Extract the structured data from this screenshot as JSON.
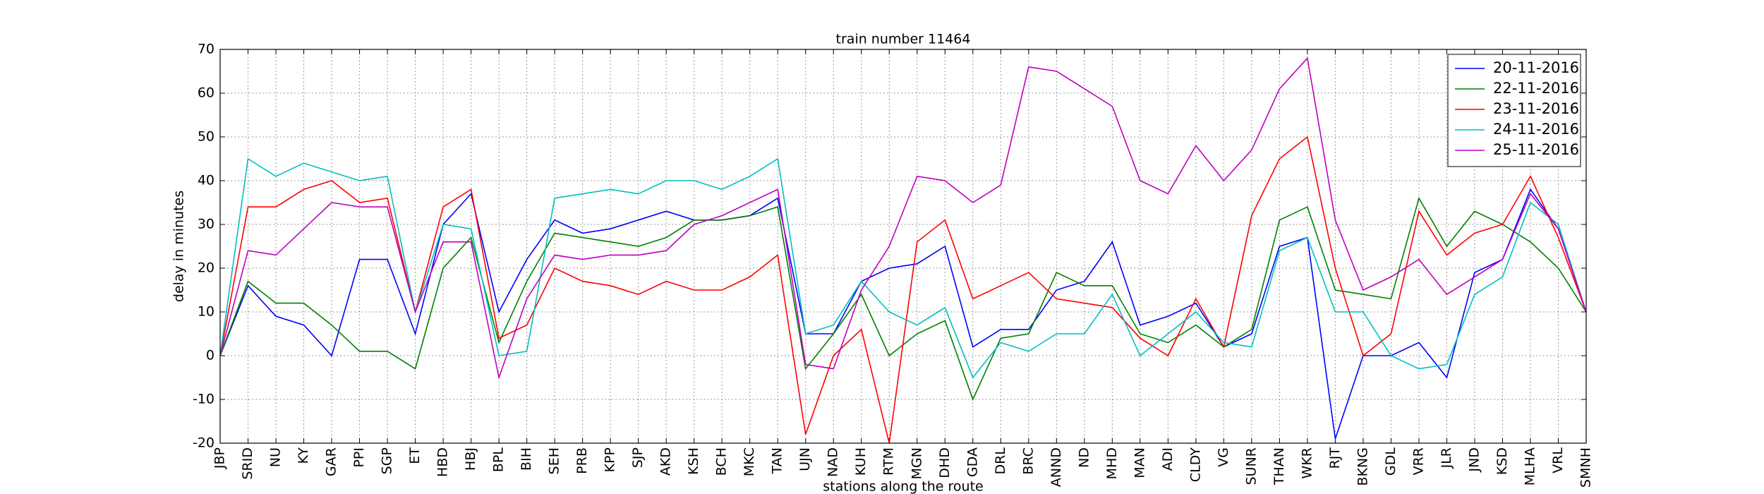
{
  "chart_data": {
    "type": "line",
    "title": "train number 11464",
    "x_label": "stations along the route",
    "y_label": "delay in minutes",
    "categories": [
      "JBP",
      "SRID",
      "NU",
      "KY",
      "GAR",
      "PPI",
      "SGP",
      "ET",
      "HBD",
      "HBJ",
      "BPL",
      "BIH",
      "SEH",
      "PRB",
      "KPP",
      "SJP",
      "AKD",
      "KSH",
      "BCH",
      "MKC",
      "TAN",
      "UJN",
      "NAD",
      "KUH",
      "RTM",
      "MGN",
      "DHD",
      "GDA",
      "DRL",
      "BRC",
      "ANND",
      "ND",
      "MHD",
      "MAN",
      "ADI",
      "CLDY",
      "VG",
      "SUNR",
      "THAN",
      "WKR",
      "RJT",
      "BKNG",
      "GDL",
      "VRR",
      "JLR",
      "JND",
      "KSD",
      "MLHA",
      "VRL",
      "SMNH"
    ],
    "series": [
      {
        "name": "20-11-2016",
        "color": "#0000ff",
        "values": [
          0,
          16,
          9,
          7,
          0,
          22,
          22,
          5,
          30,
          37,
          10,
          22,
          31,
          28,
          29,
          31,
          33,
          31,
          31,
          32,
          36,
          5,
          5,
          17,
          20,
          21,
          25,
          2,
          6,
          6,
          15,
          17,
          26,
          7,
          9,
          12,
          2,
          5,
          25,
          27,
          -19,
          0,
          0,
          3,
          -5,
          19,
          22,
          38,
          29,
          10
        ]
      },
      {
        "name": "22-11-2016",
        "color": "#008000",
        "values": [
          0,
          17,
          12,
          12,
          7,
          1,
          1,
          -3,
          20,
          27,
          3,
          17,
          28,
          27,
          26,
          25,
          27,
          31,
          31,
          32,
          34,
          -3,
          5,
          14,
          0,
          5,
          8,
          -10,
          4,
          5,
          19,
          16,
          16,
          5,
          3,
          7,
          2,
          6,
          31,
          34,
          15,
          14,
          13,
          36,
          25,
          33,
          30,
          26,
          20,
          10
        ]
      },
      {
        "name": "23-11-2016",
        "color": "#ff0000",
        "values": [
          0,
          34,
          34,
          38,
          40,
          35,
          36,
          10,
          34,
          38,
          4,
          7,
          20,
          17,
          16,
          14,
          17,
          15,
          15,
          18,
          23,
          -18,
          0,
          6,
          -20,
          26,
          31,
          13,
          16,
          19,
          13,
          12,
          11,
          4,
          0,
          13,
          2,
          32,
          45,
          50,
          20,
          0,
          5,
          33,
          23,
          28,
          30,
          41,
          27,
          10
        ]
      },
      {
        "name": "24-11-2016",
        "color": "#00bfbf",
        "values": [
          0,
          45,
          41,
          44,
          42,
          40,
          41,
          10,
          30,
          29,
          0,
          1,
          36,
          37,
          38,
          37,
          40,
          40,
          38,
          41,
          45,
          5,
          7,
          17,
          10,
          7,
          11,
          -5,
          3,
          1,
          5,
          5,
          14,
          0,
          5,
          10,
          3,
          2,
          24,
          27,
          10,
          10,
          0,
          -3,
          -2,
          14,
          18,
          35,
          30,
          10
        ]
      },
      {
        "name": "25-11-2016",
        "color": "#bf00bf",
        "values": [
          0,
          24,
          23,
          29,
          35,
          34,
          34,
          10,
          26,
          26,
          -5,
          13,
          23,
          22,
          23,
          23,
          24,
          30,
          32,
          35,
          38,
          -2,
          -3,
          15,
          25,
          41,
          40,
          35,
          39,
          66,
          65,
          61,
          57,
          40,
          37,
          48,
          40,
          47,
          61,
          68,
          31,
          15,
          18,
          22,
          14,
          18,
          22,
          37,
          29,
          10
        ]
      }
    ],
    "ylim": [
      -20,
      70
    ],
    "yticks": [
      -20,
      -10,
      0,
      10,
      20,
      30,
      40,
      50,
      60,
      70
    ],
    "grid": true,
    "legend": "upper right"
  }
}
